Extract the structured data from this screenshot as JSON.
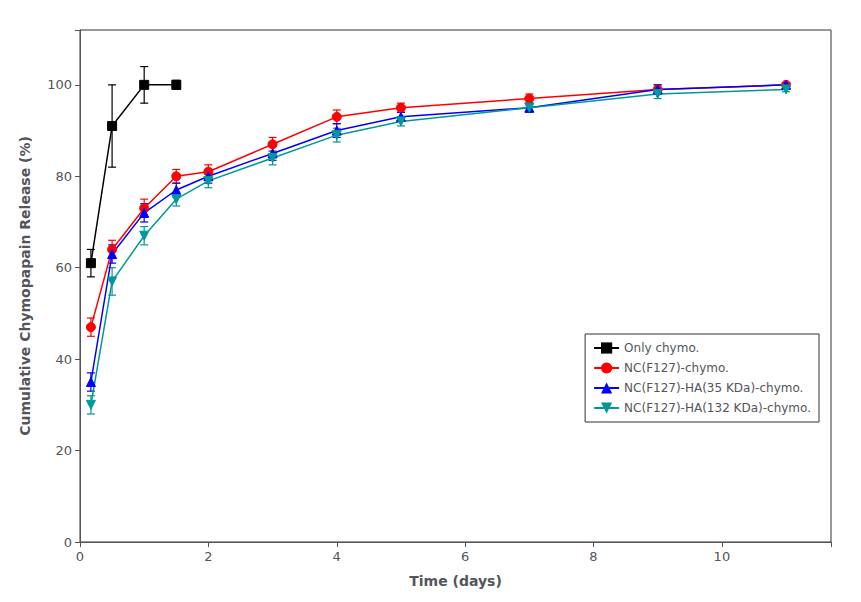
{
  "chart_data": {
    "type": "line",
    "xlabel": "Time (days)",
    "ylabel": "Cumulative Chymopapain Release (%)",
    "xlim": [
      0,
      11.7
    ],
    "ylim": [
      0,
      112
    ],
    "xticks": [
      0,
      2,
      4,
      6,
      8,
      10
    ],
    "yticks": [
      0,
      20,
      40,
      60,
      80,
      100
    ],
    "grid": false,
    "legend": "lower right",
    "series": [
      {
        "name": "Only chymo.",
        "color": "#000000",
        "marker": "square",
        "line_style": "solid",
        "x": [
          0.17,
          0.5,
          1.0,
          1.5
        ],
        "values": [
          61,
          91,
          100,
          100
        ],
        "yerr": [
          3,
          9,
          4,
          1
        ]
      },
      {
        "name": "NC(F127)-chymo.",
        "color": "#ff0000",
        "marker": "circle",
        "line_style": "solid",
        "x": [
          0.17,
          0.5,
          1.0,
          1.5,
          2.0,
          3.0,
          4.0,
          5.0,
          7.0,
          9.0,
          11.0
        ],
        "values": [
          47,
          64,
          73,
          80,
          81,
          87,
          93,
          95,
          97,
          99,
          100
        ],
        "yerr": [
          2,
          2,
          2,
          1.5,
          1.5,
          1.5,
          1.5,
          1,
          1,
          1,
          0.5
        ]
      },
      {
        "name": "NC(F127)-HA(35 KDa)-chymo.",
        "color": "#0000ff",
        "marker": "triangle-up",
        "line_style": "solid",
        "x": [
          0.17,
          0.5,
          1.0,
          1.5,
          2.0,
          3.0,
          4.0,
          5.0,
          7.0,
          9.0,
          11.0
        ],
        "values": [
          35,
          63,
          72,
          77,
          80,
          85,
          90,
          93,
          95,
          99,
          100
        ],
        "yerr": [
          2,
          2,
          2,
          1.5,
          1.5,
          1.5,
          1.5,
          1,
          1,
          1,
          0.5
        ]
      },
      {
        "name": "NC(F127)-HA(132 KDa)-chymo.",
        "color": "#009999",
        "marker": "triangle-down",
        "line_style": "solid",
        "x": [
          0.17,
          0.5,
          1.0,
          1.5,
          2.0,
          3.0,
          4.0,
          5.0,
          7.0,
          9.0,
          11.0
        ],
        "values": [
          30,
          57,
          67,
          75,
          79,
          84,
          89,
          92,
          95,
          98,
          99
        ],
        "yerr": [
          2,
          3,
          2,
          1.5,
          1.5,
          1.5,
          1.5,
          1,
          1,
          1,
          0.5
        ]
      }
    ]
  }
}
